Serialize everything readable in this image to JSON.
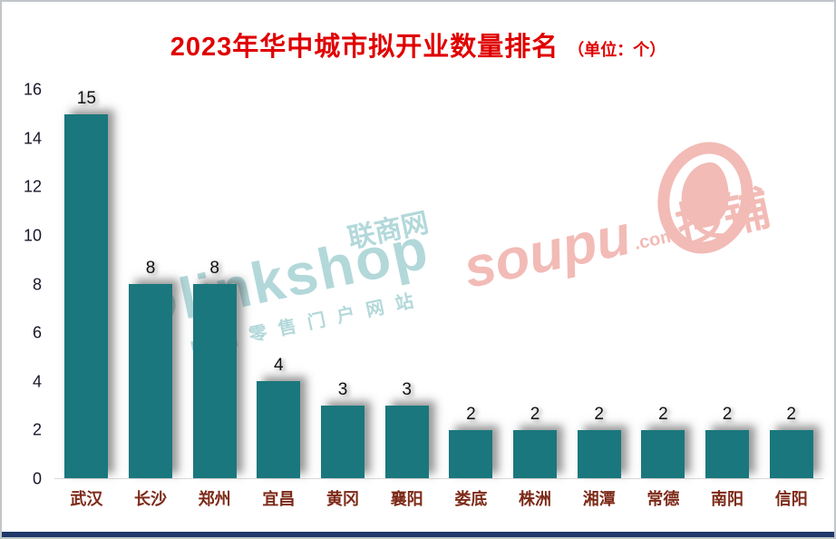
{
  "chart_data": {
    "type": "bar",
    "title": "2023年华中城市拟开业数量排名",
    "unit_label": "（单位：个）",
    "categories": [
      "武汉",
      "长沙",
      "郑州",
      "宜昌",
      "黄冈",
      "襄阳",
      "娄底",
      "株洲",
      "湘潭",
      "常德",
      "南阳",
      "信阳"
    ],
    "values": [
      15,
      8,
      8,
      4,
      3,
      3,
      2,
      2,
      2,
      2,
      2,
      2
    ],
    "ylim": [
      0,
      16
    ],
    "yticks": [
      0,
      2,
      4,
      6,
      8,
      10,
      12,
      14,
      16
    ],
    "grid": false,
    "legend": "none",
    "bar_color": "#1a777d",
    "title_color": "#e00000",
    "xtick_color": "#7d2a18",
    "ytick_color": "#17172a",
    "value_label_color": "#111111"
  },
  "watermarks": {
    "linkshop": {
      "brand": "linkshop",
      "cn": "联商网",
      "tagline": "中国零售门户网站"
    },
    "soupu": {
      "brand": "soupu",
      "domain": ".com",
      "cn": "搜铺"
    }
  }
}
